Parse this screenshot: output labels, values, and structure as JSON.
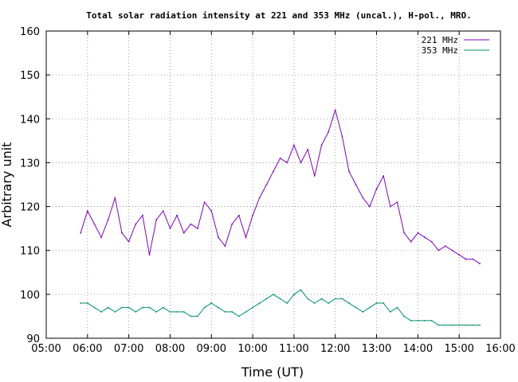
{
  "chart_data": {
    "type": "line",
    "title": "Total solar radiation intensity at 221 and 353 MHz (uncal.), H-pol., MRO.",
    "xlabel": "Time (UT)",
    "ylabel": "Arbitrary unit",
    "xlim": [
      "05:00",
      "16:00"
    ],
    "ylim": [
      90,
      160
    ],
    "x_ticks": [
      "05:00",
      "06:00",
      "07:00",
      "08:00",
      "09:00",
      "10:00",
      "11:00",
      "12:00",
      "13:00",
      "14:00",
      "15:00",
      "16:00"
    ],
    "y_ticks": [
      90,
      100,
      110,
      120,
      130,
      140,
      150,
      160
    ],
    "grid": true,
    "legend_position": "top-right",
    "series": [
      {
        "name": "221 MHz",
        "color": "#8000c0",
        "x": [
          "05:50",
          "06:00",
          "06:10",
          "06:20",
          "06:30",
          "06:40",
          "06:50",
          "07:00",
          "07:10",
          "07:20",
          "07:30",
          "07:40",
          "07:50",
          "08:00",
          "08:10",
          "08:20",
          "08:30",
          "08:40",
          "08:50",
          "09:00",
          "09:10",
          "09:20",
          "09:30",
          "09:40",
          "09:50",
          "10:00",
          "10:10",
          "10:20",
          "10:30",
          "10:40",
          "10:50",
          "11:00",
          "11:10",
          "11:20",
          "11:30",
          "11:40",
          "11:50",
          "12:00",
          "12:10",
          "12:20",
          "12:30",
          "12:40",
          "12:50",
          "13:00",
          "13:10",
          "13:20",
          "13:30",
          "13:40",
          "13:50",
          "14:00",
          "14:10",
          "14:20",
          "14:30",
          "14:40",
          "14:50",
          "15:00",
          "15:10",
          "15:20",
          "15:30"
        ],
        "values": [
          114,
          119,
          116,
          113,
          117,
          122,
          114,
          112,
          116,
          118,
          109,
          117,
          119,
          115,
          118,
          114,
          116,
          115,
          121,
          119,
          113,
          111,
          116,
          118,
          113,
          118,
          122,
          125,
          128,
          131,
          130,
          134,
          130,
          133,
          127,
          134,
          137,
          142,
          136,
          128,
          125,
          122,
          120,
          124,
          127,
          120,
          121,
          114,
          112,
          114,
          113,
          112,
          110,
          111,
          110,
          109,
          108,
          108,
          107
        ]
      },
      {
        "name": "353 MHz",
        "color": "#009070",
        "x": [
          "05:50",
          "06:00",
          "06:10",
          "06:20",
          "06:30",
          "06:40",
          "06:50",
          "07:00",
          "07:10",
          "07:20",
          "07:30",
          "07:40",
          "07:50",
          "08:00",
          "08:10",
          "08:20",
          "08:30",
          "08:40",
          "08:50",
          "09:00",
          "09:10",
          "09:20",
          "09:30",
          "09:40",
          "09:50",
          "10:00",
          "10:10",
          "10:20",
          "10:30",
          "10:40",
          "10:50",
          "11:00",
          "11:10",
          "11:20",
          "11:30",
          "11:40",
          "11:50",
          "12:00",
          "12:10",
          "12:20",
          "12:30",
          "12:40",
          "12:50",
          "13:00",
          "13:10",
          "13:20",
          "13:30",
          "13:40",
          "13:50",
          "14:00",
          "14:10",
          "14:20",
          "14:30",
          "14:40",
          "14:50",
          "15:00",
          "15:10",
          "15:20",
          "15:30"
        ],
        "values": [
          98,
          98,
          97,
          96,
          97,
          96,
          97,
          97,
          96,
          97,
          97,
          96,
          97,
          96,
          96,
          96,
          95,
          95,
          97,
          98,
          97,
          96,
          96,
          95,
          96,
          97,
          98,
          99,
          100,
          99,
          98,
          100,
          101,
          99,
          98,
          99,
          98,
          99,
          99,
          98,
          97,
          96,
          97,
          98,
          98,
          96,
          97,
          95,
          94,
          94,
          94,
          94,
          93,
          93,
          93,
          93,
          93,
          93,
          93
        ]
      }
    ]
  }
}
